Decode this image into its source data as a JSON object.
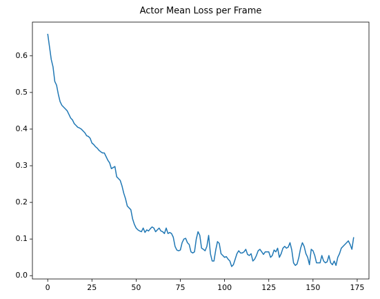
{
  "chart_data": {
    "type": "line",
    "title": "Actor Mean Loss per Frame",
    "x": [
      0,
      1,
      2,
      3,
      4,
      5,
      6,
      7,
      8,
      9,
      10,
      11,
      12,
      13,
      14,
      15,
      16,
      17,
      18,
      19,
      20,
      21,
      22,
      23,
      24,
      25,
      26,
      27,
      28,
      29,
      30,
      31,
      32,
      33,
      34,
      35,
      36,
      37,
      38,
      39,
      40,
      41,
      42,
      43,
      44,
      45,
      46,
      47,
      48,
      49,
      50,
      51,
      52,
      53,
      54,
      55,
      56,
      57,
      58,
      59,
      60,
      61,
      62,
      63,
      64,
      65,
      66,
      67,
      68,
      69,
      70,
      71,
      72,
      73,
      74,
      75,
      76,
      77,
      78,
      79,
      80,
      81,
      82,
      83,
      84,
      85,
      86,
      87,
      88,
      89,
      90,
      91,
      92,
      93,
      94,
      95,
      96,
      97,
      98,
      99,
      100,
      101,
      102,
      103,
      104,
      105,
      106,
      107,
      108,
      109,
      110,
      111,
      112,
      113,
      114,
      115,
      116,
      117,
      118,
      119,
      120,
      121,
      122,
      123,
      124,
      125,
      126,
      127,
      128,
      129,
      130,
      131,
      132,
      133,
      134,
      135,
      136,
      137,
      138,
      139,
      140,
      141,
      142,
      143,
      144,
      145,
      146,
      147,
      148,
      149,
      150,
      151,
      152,
      153,
      154,
      155,
      156,
      157,
      158,
      159,
      160,
      161,
      162,
      163,
      164,
      165,
      166,
      167,
      168,
      169,
      170,
      171,
      172,
      173
    ],
    "series": [
      {
        "color": "#1f77b4",
        "values": [
          0.66,
          0.625,
          0.59,
          0.57,
          0.53,
          0.52,
          0.495,
          0.475,
          0.465,
          0.46,
          0.455,
          0.45,
          0.44,
          0.43,
          0.425,
          0.415,
          0.41,
          0.405,
          0.403,
          0.4,
          0.395,
          0.39,
          0.382,
          0.38,
          0.375,
          0.362,
          0.358,
          0.352,
          0.348,
          0.342,
          0.338,
          0.335,
          0.335,
          0.325,
          0.315,
          0.308,
          0.292,
          0.295,
          0.298,
          0.27,
          0.265,
          0.26,
          0.245,
          0.225,
          0.21,
          0.19,
          0.185,
          0.18,
          0.155,
          0.14,
          0.13,
          0.125,
          0.122,
          0.12,
          0.13,
          0.118,
          0.125,
          0.122,
          0.128,
          0.133,
          0.13,
          0.12,
          0.125,
          0.13,
          0.122,
          0.12,
          0.115,
          0.13,
          0.115,
          0.118,
          0.115,
          0.105,
          0.08,
          0.07,
          0.068,
          0.07,
          0.09,
          0.1,
          0.102,
          0.09,
          0.085,
          0.065,
          0.062,
          0.065,
          0.1,
          0.12,
          0.11,
          0.075,
          0.072,
          0.068,
          0.08,
          0.11,
          0.06,
          0.04,
          0.04,
          0.07,
          0.093,
          0.088,
          0.06,
          0.055,
          0.05,
          0.052,
          0.045,
          0.04,
          0.025,
          0.03,
          0.045,
          0.06,
          0.068,
          0.062,
          0.062,
          0.065,
          0.072,
          0.058,
          0.055,
          0.06,
          0.04,
          0.045,
          0.055,
          0.068,
          0.072,
          0.065,
          0.058,
          0.065,
          0.065,
          0.065,
          0.05,
          0.055,
          0.07,
          0.065,
          0.075,
          0.05,
          0.06,
          0.075,
          0.08,
          0.075,
          0.078,
          0.09,
          0.07,
          0.035,
          0.028,
          0.032,
          0.05,
          0.075,
          0.09,
          0.08,
          0.06,
          0.05,
          0.03,
          0.072,
          0.068,
          0.055,
          0.035,
          0.035,
          0.035,
          0.055,
          0.04,
          0.035,
          0.038,
          0.055,
          0.035,
          0.03,
          0.04,
          0.028,
          0.05,
          0.06,
          0.075,
          0.08,
          0.085,
          0.09,
          0.095,
          0.085,
          0.072,
          0.105
        ]
      }
    ],
    "xlim": [
      -8.65,
      181.65
    ],
    "ylim": [
      -0.009,
      0.692
    ],
    "xticks": [
      0,
      25,
      50,
      75,
      100,
      125,
      150,
      175
    ],
    "yticks": [
      {
        "value": 0,
        "label": "0.0"
      },
      0.1,
      0.2,
      0.3,
      0.4,
      0.5,
      0.6
    ]
  }
}
